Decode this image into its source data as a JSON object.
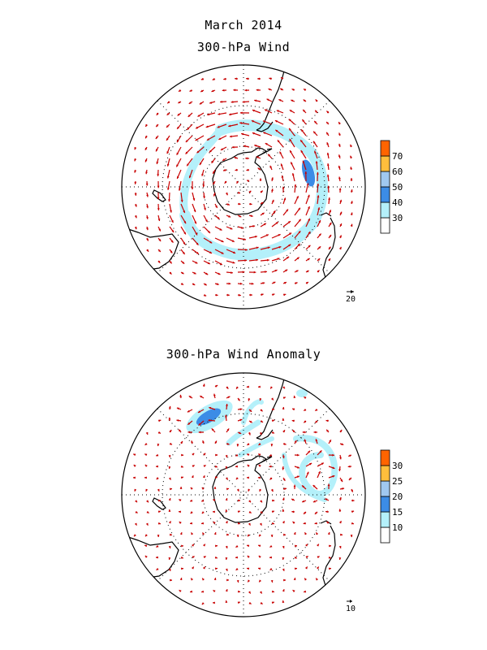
{
  "figure": {
    "title": "March 2014",
    "panels": [
      {
        "title": "300-hPa Wind",
        "colorbar": {
          "ticks": [
            "30",
            "40",
            "50",
            "60",
            "70"
          ],
          "colors": [
            "#ffffff",
            "#b4f0fa",
            "#3c8ce6",
            "#a0c8f0",
            "#ffbe3c",
            "#ff6400"
          ]
        },
        "reference_vector_label": "20"
      },
      {
        "title": "300-hPa Wind Anomaly",
        "colorbar": {
          "ticks": [
            "10",
            "15",
            "20",
            "25",
            "30"
          ],
          "colors": [
            "#ffffff",
            "#b4f0fa",
            "#3c8ce6",
            "#a0c8f0",
            "#ffbe3c",
            "#ff6400"
          ]
        },
        "reference_vector_label": "10"
      }
    ]
  },
  "chart_data": [
    {
      "type": "heatmap",
      "title": "300-hPa Wind",
      "projection": "south-polar-stereographic",
      "color_levels": [
        30,
        40,
        50,
        60,
        70
      ],
      "vector_units_reference": 20
    },
    {
      "type": "heatmap",
      "title": "300-hPa Wind Anomaly",
      "projection": "south-polar-stereographic",
      "color_levels": [
        10,
        15,
        20,
        25,
        30
      ],
      "vector_units_reference": 10
    }
  ],
  "colors": {
    "vector": "#c80000",
    "coast": "#000000",
    "grid": "#000000",
    "light_shade": "#b4f0fa",
    "mid_shade": "#3c8ce6",
    "yellow": "#ffbe3c",
    "orange": "#ff6400"
  }
}
